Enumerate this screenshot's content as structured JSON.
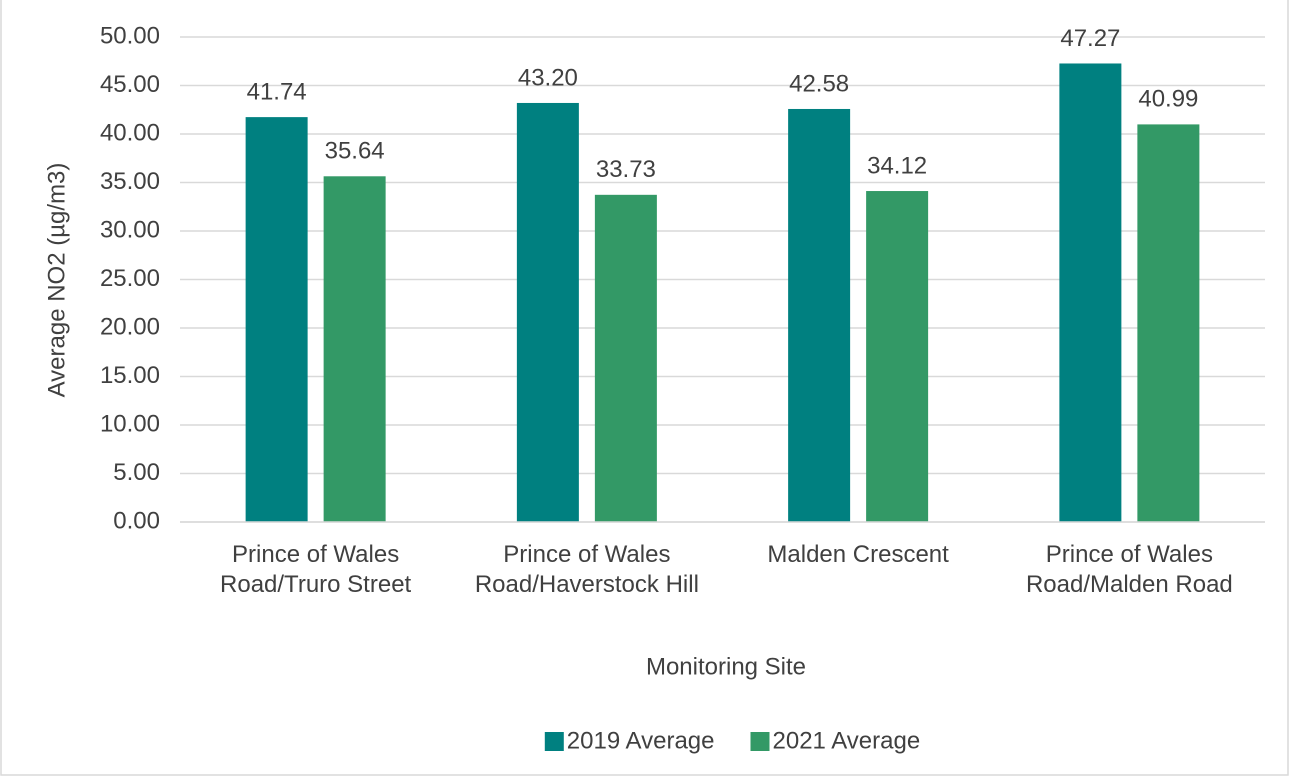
{
  "chart_data": {
    "type": "bar",
    "categories": [
      "Prince of Wales Road/Truro Street",
      "Prince of Wales Road/Haverstock Hill",
      "Malden Crescent",
      "Prince of Wales Road/Malden Road"
    ],
    "series": [
      {
        "name": "2019 Average",
        "color": "#008080",
        "values": [
          41.74,
          43.2,
          42.58,
          47.27
        ],
        "value_labels": [
          "41.74",
          "43.20",
          "42.58",
          "47.27"
        ]
      },
      {
        "name": "2021 Average",
        "color": "#339966",
        "values": [
          35.64,
          33.73,
          34.12,
          40.99
        ],
        "value_labels": [
          "35.64",
          "33.73",
          "34.12",
          "40.99"
        ]
      }
    ],
    "y_label": "Average NO2 (µg/m3)",
    "x_label": "Monitoring Site",
    "ylim": [
      0,
      50
    ],
    "yticks": [
      {
        "value": 0,
        "label": "0.00"
      },
      {
        "value": 5,
        "label": "5.00"
      },
      {
        "value": 10,
        "label": "10.00"
      },
      {
        "value": 15,
        "label": "15.00"
      },
      {
        "value": 20,
        "label": "20.00"
      },
      {
        "value": 25,
        "label": "25.00"
      },
      {
        "value": 30,
        "label": "30.00"
      },
      {
        "value": 35,
        "label": "35.00"
      },
      {
        "value": 40,
        "label": "40.00"
      },
      {
        "value": 45,
        "label": "45.00"
      },
      {
        "value": 50,
        "label": "50.00"
      }
    ],
    "grid": true,
    "legend": "bottom"
  }
}
